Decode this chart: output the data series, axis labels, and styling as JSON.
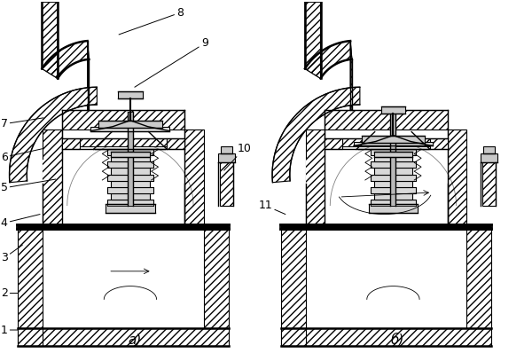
{
  "background_color": "#ffffff",
  "line_color": "#000000",
  "font_size": 9,
  "caption_font_size": 11,
  "caption_left": "а)",
  "caption_right": "б)",
  "labels_left": [
    "1",
    "2",
    "3",
    "4",
    "5",
    "6",
    "7"
  ],
  "label_8": "8",
  "label_9": "9",
  "label_10": "10",
  "label_11": "11",
  "hatch_pattern": "////",
  "lw_main": 1.0,
  "lw_thick": 1.8,
  "lw_thin": 0.6
}
